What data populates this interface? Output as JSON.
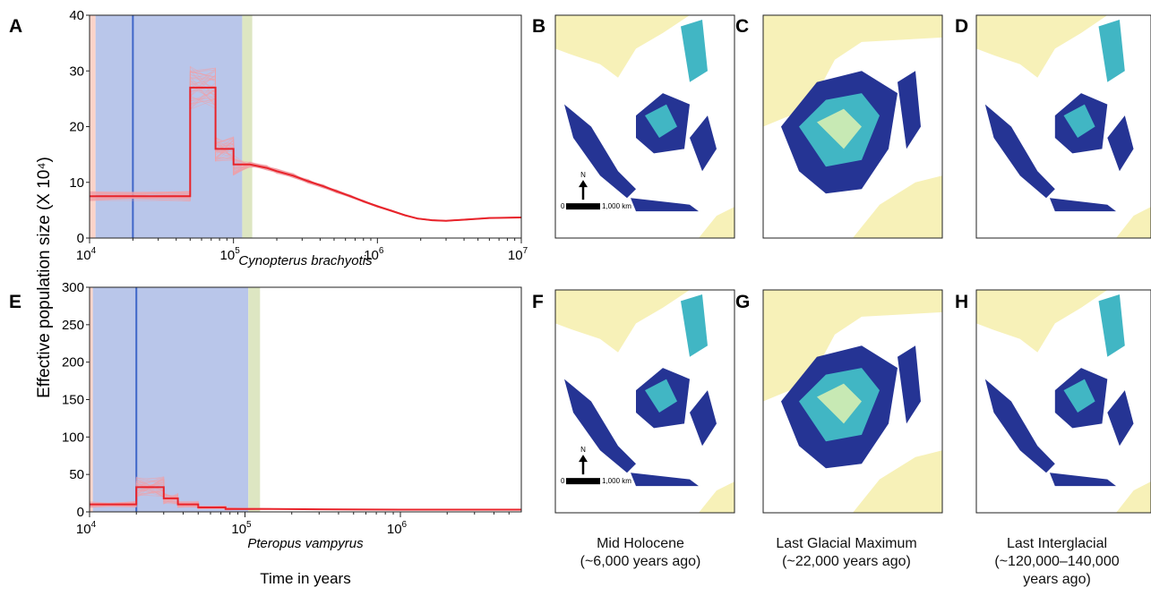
{
  "figure": {
    "ylabel": "Effective population size (X 10⁴)",
    "xlabel": "Time in years"
  },
  "panels": [
    {
      "letter": "A"
    },
    {
      "letter": "B"
    },
    {
      "letter": "C"
    },
    {
      "letter": "D"
    },
    {
      "letter": "E"
    },
    {
      "letter": "F"
    },
    {
      "letter": "G"
    },
    {
      "letter": "H"
    }
  ],
  "captions": [
    {
      "line1": "Mid Holocene",
      "line2": "(~6,000 years ago)",
      "line3": ""
    },
    {
      "line1": "Last Glacial Maximum",
      "line2": "(~22,000 years ago)",
      "line3": ""
    },
    {
      "line1": "Last Interglacial",
      "line2": "(~120,000–140,000",
      "line3": "years ago)"
    }
  ],
  "scalebar": {
    "zero": "0",
    "dist": "1,000 km",
    "north": "N"
  },
  "colors": {
    "psmc_line": "#e8232a",
    "bootstrap": "#f0a0a8",
    "glacial_shade": "#b9c6ea",
    "holocene_shade": "#fbd3c9",
    "interglacial_shade": "#dde6c2",
    "lgm_line": "#3f66c8",
    "land": "#f7f1b8",
    "suit_low": "#c7e9b4",
    "suit_mid": "#41b6c4",
    "suit_high": "#253494"
  },
  "chart_data": [
    {
      "type": "line",
      "panel": "A",
      "xlabel": "Cynopterus brachyotis",
      "x_scale": "log",
      "xlim": [
        10000,
        10000000
      ],
      "ylim": [
        0,
        40
      ],
      "xticks": [
        {
          "v": 10000,
          "base": "10",
          "exp": "4"
        },
        {
          "v": 100000,
          "base": "10",
          "exp": "5"
        },
        {
          "v": 1000000,
          "base": "10",
          "exp": "6"
        },
        {
          "v": 10000000,
          "base": "10",
          "exp": "7"
        }
      ],
      "yticks": [
        "0",
        "10",
        "20",
        "30",
        "40"
      ],
      "yvals": [
        0,
        10,
        20,
        30,
        40
      ],
      "shades": [
        {
          "from": 9000,
          "to": 11000,
          "kind": "holocene"
        },
        {
          "from": 11000,
          "to": 115000,
          "kind": "glacial"
        },
        {
          "from": 115000,
          "to": 135000,
          "kind": "interglacial"
        }
      ],
      "lgm_line": 20000,
      "step": [
        [
          10000,
          7.5
        ],
        [
          50000,
          7.5
        ],
        [
          50000,
          27
        ],
        [
          75000,
          27
        ],
        [
          75000,
          16
        ],
        [
          100000,
          16
        ],
        [
          100000,
          13.2
        ],
        [
          130000,
          13.2
        ],
        [
          170000,
          12.6
        ],
        [
          200000,
          12
        ],
        [
          260000,
          11.2
        ],
        [
          330000,
          10.2
        ],
        [
          420000,
          9.3
        ],
        [
          520000,
          8.4
        ],
        [
          650000,
          7.5
        ],
        [
          800000,
          6.6
        ],
        [
          1000000,
          5.7
        ],
        [
          1250000,
          4.9
        ],
        [
          1550000,
          4.1
        ],
        [
          1900000,
          3.5
        ],
        [
          2400000,
          3.2
        ],
        [
          3000000,
          3.1
        ],
        [
          4000000,
          3.3
        ],
        [
          6000000,
          3.6
        ],
        [
          10000000,
          3.7
        ]
      ],
      "boot_spread": 0.12
    },
    {
      "type": "line",
      "panel": "E",
      "xlabel": "Pteropus vampyrus",
      "x_scale": "log",
      "xlim": [
        10000,
        6000000
      ],
      "ylim": [
        0,
        300
      ],
      "xticks": [
        {
          "v": 10000,
          "base": "10",
          "exp": "4"
        },
        {
          "v": 100000,
          "base": "10",
          "exp": "5"
        },
        {
          "v": 1000000,
          "base": "10",
          "exp": "6"
        }
      ],
      "yticks": [
        "0",
        "50",
        "100",
        "150",
        "200",
        "250",
        "300"
      ],
      "yvals": [
        0,
        50,
        100,
        150,
        200,
        250,
        300
      ],
      "shades": [
        {
          "from": 9000,
          "to": 10500,
          "kind": "holocene"
        },
        {
          "from": 10500,
          "to": 105000,
          "kind": "glacial"
        },
        {
          "from": 105000,
          "to": 125000,
          "kind": "interglacial"
        }
      ],
      "lgm_line": 20000,
      "step": [
        [
          10000,
          10
        ],
        [
          20000,
          10
        ],
        [
          20000,
          33
        ],
        [
          30000,
          33
        ],
        [
          30000,
          18
        ],
        [
          37000,
          18
        ],
        [
          37000,
          10
        ],
        [
          50000,
          10
        ],
        [
          50000,
          6
        ],
        [
          75000,
          6
        ],
        [
          75000,
          4
        ],
        [
          150000,
          4
        ],
        [
          300000,
          3.5
        ],
        [
          1000000,
          3
        ],
        [
          6000000,
          3
        ]
      ],
      "boot_spread": 0.35
    }
  ]
}
